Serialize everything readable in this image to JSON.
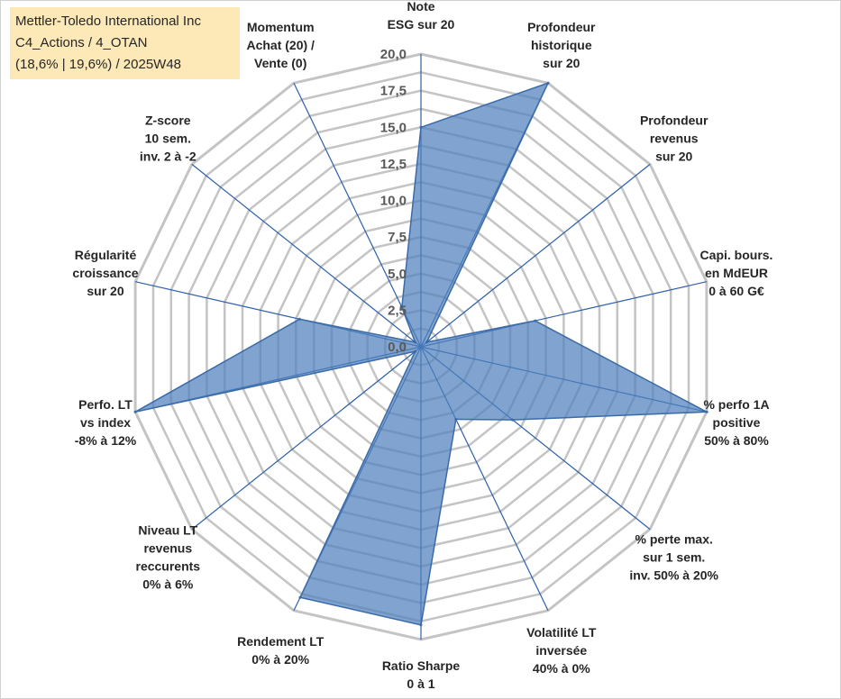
{
  "title_box": {
    "line1": "Mettler-Toledo International Inc",
    "line2": "C4_Actions / 4_OTAN",
    "line3": "(18,6% | 19,6%) / 2025W48"
  },
  "colors": {
    "fill": "#4f81bd",
    "stroke": "#3a6aa8",
    "grid": "#c4c4c4",
    "spoke": "#2e5fa8",
    "title_bg": "#fde9b8"
  },
  "chart_data": {
    "type": "radar",
    "title": "Mettler-Toledo International Inc",
    "rmin": 0,
    "rmax": 20,
    "step": 2.5,
    "ticks": [
      "0,0",
      "2,5",
      "5,0",
      "7,5",
      "10,0",
      "12,5",
      "15,0",
      "17,5",
      "20,0"
    ],
    "categories": [
      {
        "lines": [
          "Note",
          "ESG sur 20"
        ]
      },
      {
        "lines": [
          "Profondeur",
          "historique",
          "sur 20"
        ]
      },
      {
        "lines": [
          "Profondeur",
          "revenus",
          "sur 20"
        ]
      },
      {
        "lines": [
          "Capi. bours.",
          "en MdEUR",
          "0 à 60 G€"
        ]
      },
      {
        "lines": [
          "% perfo 1A",
          "positive",
          "50% à 80%"
        ]
      },
      {
        "lines": [
          "% perte max.",
          "sur 1 sem.",
          "inv. 50% à 20%"
        ]
      },
      {
        "lines": [
          "Volatilité LT",
          "inversée",
          "40% à 0%"
        ]
      },
      {
        "lines": [
          "Ratio Sharpe",
          "0 à 1"
        ]
      },
      {
        "lines": [
          "Rendement LT",
          "0% à 20%"
        ]
      },
      {
        "lines": [
          "Niveau LT",
          "revenus",
          "reccurents",
          "0% à 6%"
        ]
      },
      {
        "lines": [
          "Perfo. LT",
          "vs index",
          "-8% à 12%"
        ]
      },
      {
        "lines": [
          "Régularité",
          "croissance",
          "sur 20"
        ]
      },
      {
        "lines": [
          "Z-score",
          "10 sem.",
          "inv. 2 à -2"
        ]
      },
      {
        "lines": [
          "Momentum",
          "Achat (20) /",
          "Vente (0)"
        ]
      }
    ],
    "series": [
      {
        "name": "Mettler-Toledo International Inc",
        "values": [
          15,
          20,
          0.5,
          8,
          20,
          8,
          5.5,
          19,
          19,
          0.5,
          20,
          8.5,
          0.5,
          3
        ]
      }
    ]
  }
}
